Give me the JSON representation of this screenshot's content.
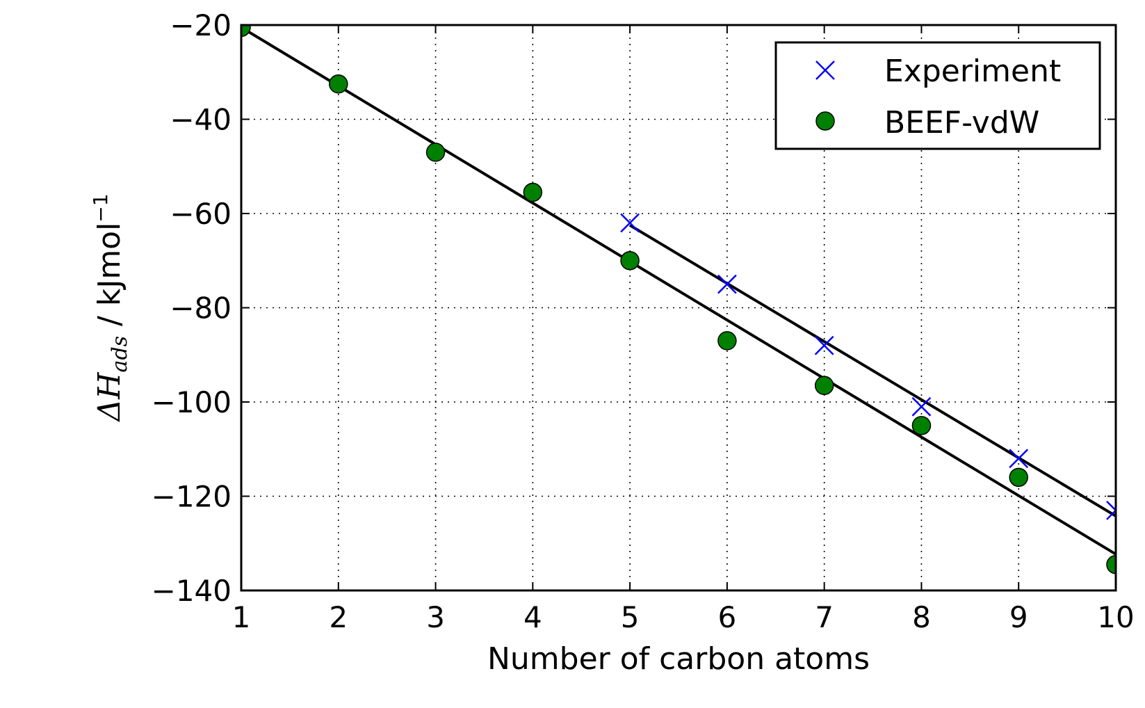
{
  "chart_data": {
    "type": "scatter",
    "xlabel": "Number of carbon atoms",
    "ylabel_math": "ΔH",
    "ylabel_sub": "ads",
    "ylabel_unit": " / kJmol",
    "ylabel_sup": "−1",
    "xlim": [
      1,
      10
    ],
    "ylim": [
      -140,
      -20
    ],
    "xticks": [
      1,
      2,
      3,
      4,
      5,
      6,
      7,
      8,
      9,
      10
    ],
    "yticks": [
      -20,
      -40,
      -60,
      -80,
      -100,
      -120,
      -140
    ],
    "grid": true,
    "legend_placement": "top-right",
    "series": [
      {
        "name": "Experiment",
        "marker": "x",
        "color": "#0000ff",
        "x": [
          5,
          6,
          7,
          8,
          9,
          10
        ],
        "y": [
          -62,
          -75,
          -88,
          -101,
          -112,
          -123
        ]
      },
      {
        "name": "BEEF-vdW",
        "marker": "o",
        "color": "#008000",
        "x": [
          1,
          2,
          3,
          4,
          5,
          6,
          7,
          8,
          9,
          10
        ],
        "y": [
          -20.5,
          -32.5,
          -47,
          -55.5,
          -70,
          -87,
          -96.5,
          -105,
          -116,
          -134.5
        ]
      }
    ],
    "fit_lines": [
      {
        "name": "BEEF-vdW fit",
        "color": "#000000",
        "x": [
          1,
          10
        ],
        "y": [
          -20.5,
          -132.3
        ]
      },
      {
        "name": "Experiment fit",
        "color": "#000000",
        "x": [
          5,
          10
        ],
        "y": [
          -62.5,
          -124.2
        ]
      }
    ]
  }
}
